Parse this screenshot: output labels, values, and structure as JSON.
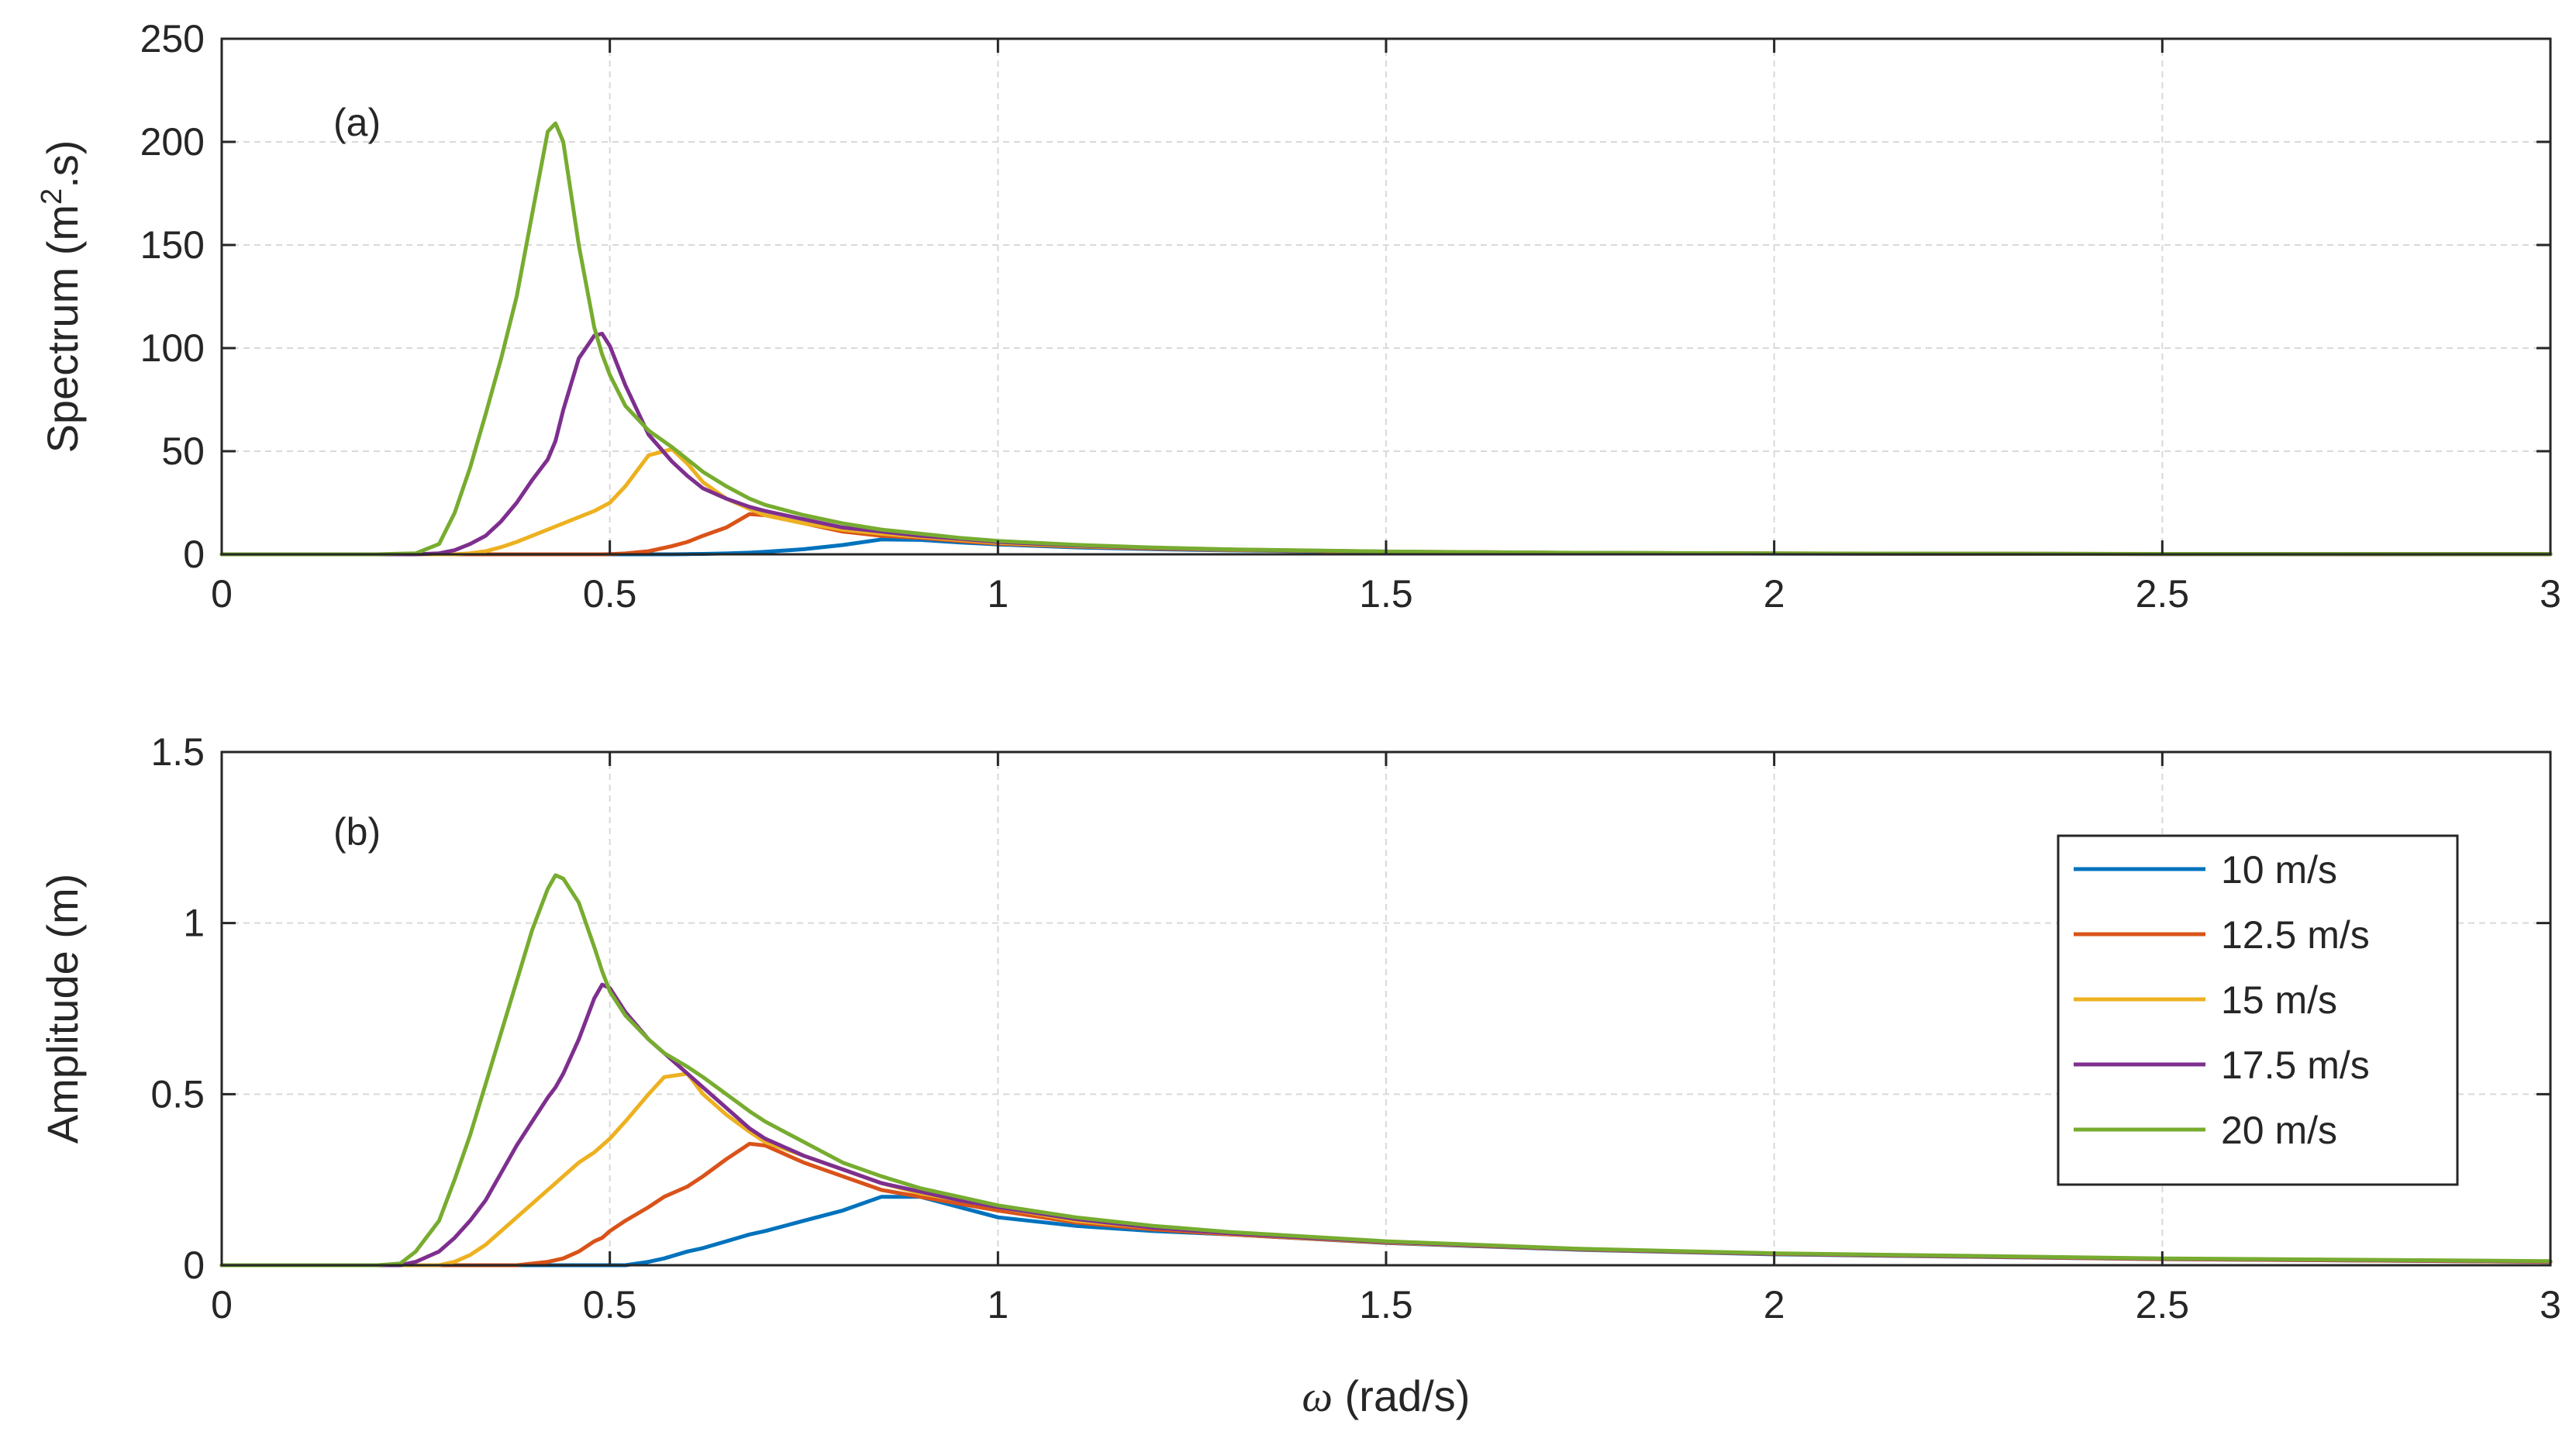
{
  "chart_data": [
    {
      "type": "line",
      "panel_label": "(a)",
      "ylabel": "Spectrum (m².s)",
      "ylabel_parts": {
        "pre": "Spectrum (m",
        "sup": "2",
        "post": ".s)"
      },
      "xlabel": "",
      "xlim": [
        0,
        3
      ],
      "ylim": [
        0,
        250
      ],
      "xticks": [
        "0",
        "0.5",
        "1",
        "1.5",
        "2",
        "2.5",
        "3"
      ],
      "yticks": [
        "0",
        "50",
        "100",
        "150",
        "200",
        "250"
      ],
      "grid": true,
      "legend": null,
      "x": [
        0,
        0.2,
        0.25,
        0.28,
        0.3,
        0.32,
        0.34,
        0.36,
        0.38,
        0.4,
        0.42,
        0.43,
        0.44,
        0.46,
        0.48,
        0.49,
        0.5,
        0.52,
        0.55,
        0.58,
        0.6,
        0.62,
        0.65,
        0.68,
        0.7,
        0.75,
        0.8,
        0.85,
        0.9,
        0.95,
        1.0,
        1.1,
        1.2,
        1.3,
        1.5,
        1.75,
        2.0,
        2.5,
        3.0
      ],
      "series": [
        {
          "name": "10 m/s",
          "color": "#0072BD",
          "values": [
            0,
            0,
            0,
            0,
            0,
            0,
            0,
            0,
            0,
            0,
            0,
            0,
            0,
            0,
            0,
            0,
            0,
            0,
            0,
            0,
            0.1,
            0.2,
            0.4,
            0.8,
            1.2,
            2.5,
            4.5,
            7.2,
            7.0,
            5.8,
            4.8,
            3.4,
            2.5,
            1.9,
            1.1,
            0.6,
            0.35,
            0.15,
            0.08
          ]
        },
        {
          "name": "12.5 m/s",
          "color": "#D95319",
          "values": [
            0,
            0,
            0,
            0,
            0,
            0,
            0,
            0,
            0,
            0,
            0,
            0,
            0,
            0,
            0,
            0,
            0.1,
            0.4,
            1.5,
            4,
            6,
            9,
            13,
            19.5,
            19,
            15,
            11,
            9,
            8,
            6.5,
            5.2,
            3.8,
            2.8,
            2.1,
            1.2,
            0.65,
            0.38,
            0.15,
            0.08
          ]
        },
        {
          "name": "15 m/s",
          "color": "#EDB120",
          "values": [
            0,
            0,
            0,
            0,
            0,
            0.5,
            1.5,
            3.5,
            6,
            9,
            12,
            13.5,
            15,
            18,
            21,
            23,
            25,
            33,
            48,
            51,
            44,
            35,
            27,
            22,
            19,
            15,
            12,
            10,
            8.5,
            7,
            5.6,
            4.0,
            3.0,
            2.2,
            1.25,
            0.7,
            0.4,
            0.16,
            0.08
          ]
        },
        {
          "name": "17.5 m/s",
          "color": "#7E2F8E",
          "values": [
            0,
            0,
            0,
            0.5,
            2,
            5,
            9,
            16,
            25,
            36,
            46,
            55,
            70,
            95,
            106,
            107,
            101,
            82,
            58,
            45,
            38,
            32,
            27,
            23,
            21,
            17,
            13,
            11,
            9,
            7.5,
            6,
            4.3,
            3.1,
            2.3,
            1.3,
            0.72,
            0.42,
            0.16,
            0.08
          ]
        },
        {
          "name": "20 m/s",
          "color": "#77AC30",
          "values": [
            0,
            0,
            0.5,
            5,
            20,
            42,
            68,
            95,
            125,
            165,
            205,
            209,
            200,
            150,
            110,
            97,
            87,
            72,
            60,
            52,
            46,
            40,
            33,
            27,
            24,
            19,
            15,
            12,
            10,
            8,
            6.5,
            4.6,
            3.3,
            2.4,
            1.35,
            0.75,
            0.44,
            0.17,
            0.09
          ]
        }
      ]
    },
    {
      "type": "line",
      "panel_label": "(b)",
      "ylabel": "Amplitude (m)",
      "xlabel": "ω (rad/s)",
      "xlabel_parts": {
        "sym": "ω",
        "rest": " (rad/s)"
      },
      "xlim": [
        0,
        3
      ],
      "ylim": [
        0,
        1.5
      ],
      "xticks": [
        "0",
        "0.5",
        "1",
        "1.5",
        "2",
        "2.5",
        "3"
      ],
      "yticks": [
        "0",
        "0.5",
        "1",
        "1.5"
      ],
      "grid": true,
      "legend": "right",
      "x": [
        0,
        0.2,
        0.23,
        0.25,
        0.28,
        0.3,
        0.32,
        0.34,
        0.36,
        0.38,
        0.4,
        0.42,
        0.43,
        0.44,
        0.46,
        0.48,
        0.49,
        0.5,
        0.52,
        0.55,
        0.57,
        0.6,
        0.62,
        0.65,
        0.68,
        0.7,
        0.75,
        0.8,
        0.85,
        0.9,
        0.95,
        1.0,
        1.1,
        1.2,
        1.3,
        1.5,
        1.75,
        2.0,
        2.5,
        3.0
      ],
      "series": [
        {
          "name": "10 m/s",
          "color": "#0072BD",
          "values": [
            0,
            0,
            0,
            0,
            0,
            0,
            0,
            0,
            0,
            0,
            0,
            0,
            0,
            0,
            0,
            0,
            0,
            0,
            0,
            0.01,
            0.02,
            0.04,
            0.05,
            0.07,
            0.09,
            0.1,
            0.13,
            0.16,
            0.2,
            0.2,
            0.17,
            0.14,
            0.115,
            0.1,
            0.09,
            0.065,
            0.045,
            0.032,
            0.018,
            0.01
          ]
        },
        {
          "name": "12.5 m/s",
          "color": "#D95319",
          "values": [
            0,
            0,
            0,
            0,
            0,
            0,
            0,
            0,
            0,
            0,
            0.005,
            0.01,
            0.015,
            0.02,
            0.04,
            0.07,
            0.08,
            0.1,
            0.13,
            0.17,
            0.2,
            0.23,
            0.26,
            0.31,
            0.355,
            0.35,
            0.3,
            0.26,
            0.22,
            0.2,
            0.18,
            0.16,
            0.125,
            0.105,
            0.09,
            0.066,
            0.046,
            0.033,
            0.018,
            0.01
          ]
        },
        {
          "name": "15 m/s",
          "color": "#EDB120",
          "values": [
            0,
            0,
            0,
            0,
            0,
            0.01,
            0.03,
            0.06,
            0.1,
            0.14,
            0.18,
            0.22,
            0.24,
            0.26,
            0.3,
            0.33,
            0.35,
            0.37,
            0.42,
            0.5,
            0.55,
            0.56,
            0.5,
            0.44,
            0.39,
            0.36,
            0.32,
            0.28,
            0.24,
            0.21,
            0.19,
            0.17,
            0.13,
            0.11,
            0.092,
            0.067,
            0.047,
            0.034,
            0.019,
            0.011
          ]
        },
        {
          "name": "17.5 m/s",
          "color": "#7E2F8E",
          "values": [
            0,
            0,
            0,
            0.01,
            0.04,
            0.08,
            0.13,
            0.19,
            0.27,
            0.35,
            0.42,
            0.49,
            0.52,
            0.56,
            0.66,
            0.78,
            0.82,
            0.81,
            0.74,
            0.66,
            0.62,
            0.56,
            0.52,
            0.46,
            0.4,
            0.37,
            0.32,
            0.28,
            0.24,
            0.215,
            0.19,
            0.17,
            0.135,
            0.11,
            0.093,
            0.068,
            0.047,
            0.034,
            0.019,
            0.011
          ]
        },
        {
          "name": "20 m/s",
          "color": "#77AC30",
          "values": [
            0,
            0,
            0.005,
            0.04,
            0.13,
            0.25,
            0.38,
            0.53,
            0.68,
            0.83,
            0.98,
            1.1,
            1.14,
            1.13,
            1.06,
            0.93,
            0.86,
            0.8,
            0.73,
            0.66,
            0.62,
            0.58,
            0.55,
            0.5,
            0.45,
            0.42,
            0.36,
            0.3,
            0.26,
            0.225,
            0.2,
            0.175,
            0.14,
            0.115,
            0.097,
            0.07,
            0.048,
            0.035,
            0.02,
            0.012
          ]
        }
      ]
    }
  ]
}
